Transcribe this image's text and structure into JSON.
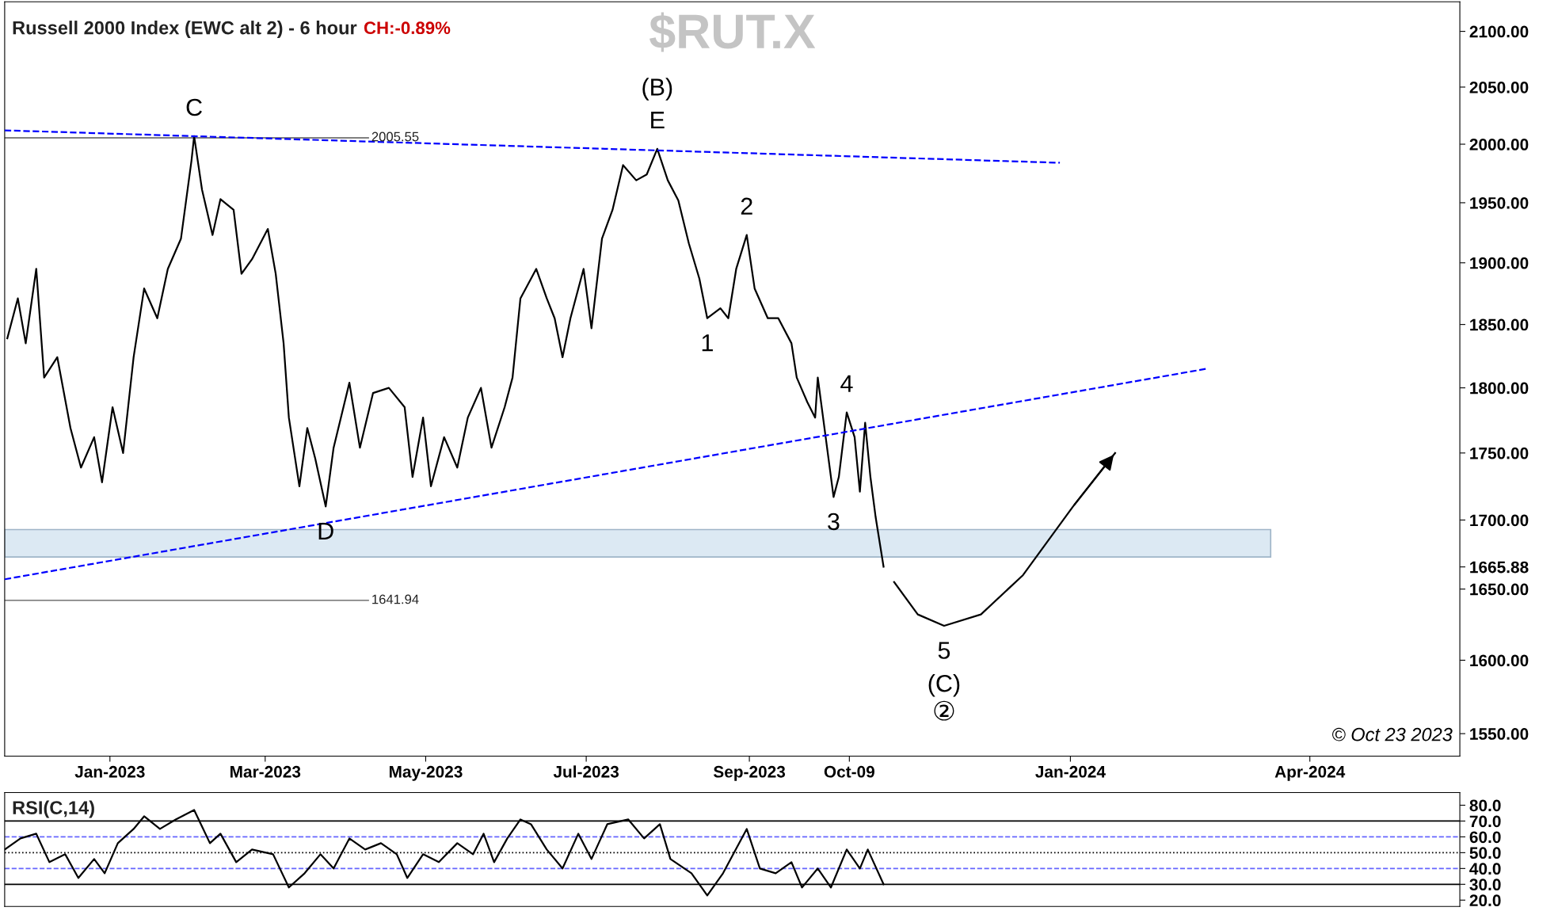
{
  "chart_data": [
    {
      "type": "line",
      "title": "Russell 2000 Index (EWC alt 2) - 6 hour",
      "subtitle": "CH:-0.89%",
      "log": true,
      "grid": false,
      "legend": false,
      "annotations": [
        "$RUT.X",
        "© Oct 23 2023",
        {
          "text": "C",
          "x": "2023-02-02",
          "y": 2007
        },
        {
          "text": "D",
          "x": "2023-03-24",
          "y": 1710
        },
        {
          "text": "E",
          "x": "2023-07-28",
          "y": 1996
        },
        {
          "text": "(B)",
          "x": "2023-07-28",
          "y": 1996
        },
        {
          "text": "1",
          "x": "2023-08-16",
          "y": 1855
        },
        {
          "text": "2",
          "x": "2023-08-31",
          "y": 1923
        },
        {
          "text": "3",
          "x": "2023-10-03",
          "y": 1717
        },
        {
          "text": "4",
          "x": "2023-10-08",
          "y": 1781
        },
        {
          "text": "5",
          "x": "2023-11-14",
          "y": 1624
        },
        {
          "text": "(C)",
          "x": "2023-11-14",
          "y": 1624
        },
        "②"
      ],
      "xlim": [
        "2022-11-22",
        "2024-05-28"
      ],
      "xticks": [
        {
          "value": "2023-01-01",
          "label": "Jan-2023"
        },
        {
          "value": "2023-03-01",
          "label": "Mar-2023"
        },
        {
          "value": "2023-05-01",
          "label": "May-2023"
        },
        {
          "value": "2023-07-01",
          "label": "Jul-2023"
        },
        {
          "value": "2023-09-01",
          "label": "Sep-2023"
        },
        {
          "value": "2023-10-09",
          "label": "Oct-09"
        },
        {
          "value": "2024-01-01",
          "label": "Jan-2024"
        },
        {
          "value": "2024-04-01",
          "label": "Apr-2024"
        }
      ],
      "ylim": [
        1535,
        2127
      ],
      "yticks": [
        {
          "value": 1550,
          "label": "1550.00"
        },
        {
          "value": 1600,
          "label": "1600.00"
        },
        {
          "value": 1650,
          "label": "1650.00"
        },
        {
          "value": 1665.88,
          "label": "1665.88"
        },
        {
          "value": 1700,
          "label": "1700.00"
        },
        {
          "value": 1750,
          "label": "1750.00"
        },
        {
          "value": 1800,
          "label": "1800.00"
        },
        {
          "value": 1850,
          "label": "1850.00"
        },
        {
          "value": 1900,
          "label": "1900.00"
        },
        {
          "value": 1950,
          "label": "1950.00"
        },
        {
          "value": 2000,
          "label": "2000.00"
        },
        {
          "value": 2050,
          "label": "2050.00"
        },
        {
          "value": 2100,
          "label": "2100.00"
        }
      ],
      "ref_lines": [
        {
          "axis": "y",
          "value": 2005.55,
          "label": "2005.55",
          "color": "#555555",
          "line_style": "solid"
        },
        {
          "axis": "y",
          "value": 1641.94,
          "label": "1641.94",
          "color": "#555555",
          "line_style": "solid"
        }
      ],
      "bands": [
        {
          "axis": "y",
          "from": 1673,
          "to": 1693,
          "color": "#dce9f3"
        }
      ],
      "series": [
        {
          "color": "#000000",
          "line_style": "solid",
          "x": [
            "2022-11-23",
            "2022-11-27",
            "2022-11-30",
            "2022-12-04",
            "2022-12-07",
            "2022-12-12",
            "2022-12-17",
            "2022-12-21",
            "2022-12-26",
            "2022-12-29",
            "2023-01-02",
            "2023-01-06",
            "2023-01-10",
            "2023-01-14",
            "2023-01-19",
            "2023-01-23",
            "2023-01-28",
            "2023-02-01",
            "2023-02-02",
            "2023-02-05",
            "2023-02-09",
            "2023-02-12",
            "2023-02-17",
            "2023-02-20",
            "2023-02-24",
            "2023-03-02",
            "2023-03-05",
            "2023-03-08",
            "2023-03-10",
            "2023-03-14",
            "2023-03-17",
            "2023-03-20",
            "2023-03-24",
            "2023-03-27",
            "2023-04-02",
            "2023-04-06",
            "2023-04-11",
            "2023-04-17",
            "2023-04-23",
            "2023-04-26",
            "2023-04-30",
            "2023-05-03",
            "2023-05-08",
            "2023-05-13",
            "2023-05-17",
            "2023-05-22",
            "2023-05-26",
            "2023-05-31",
            "2023-06-03",
            "2023-06-06",
            "2023-06-12",
            "2023-06-16",
            "2023-06-19",
            "2023-06-22",
            "2023-06-25",
            "2023-06-30",
            "2023-07-03",
            "2023-07-07",
            "2023-07-11",
            "2023-07-15",
            "2023-07-20",
            "2023-07-24",
            "2023-07-28",
            "2023-08-01",
            "2023-08-05",
            "2023-08-09",
            "2023-08-13",
            "2023-08-16",
            "2023-08-21",
            "2023-08-24",
            "2023-08-27",
            "2023-08-31",
            "2023-09-03",
            "2023-09-08",
            "2023-09-12",
            "2023-09-17",
            "2023-09-19",
            "2023-09-23",
            "2023-09-26",
            "2023-09-27",
            "2023-09-30",
            "2023-10-03",
            "2023-10-05",
            "2023-10-08",
            "2023-10-11",
            "2023-10-13",
            "2023-10-15",
            "2023-10-17",
            "2023-10-19",
            "2023-10-22"
          ],
          "values": [
            1839,
            1871,
            1835,
            1895,
            1808,
            1824,
            1769,
            1739,
            1762,
            1728,
            1785,
            1750,
            1824,
            1879,
            1855,
            1895,
            1920,
            1986,
            2007,
            1961,
            1923,
            1953,
            1944,
            1891,
            1903,
            1928,
            1891,
            1835,
            1777,
            1725,
            1769,
            1746,
            1710,
            1754,
            1804,
            1754,
            1796,
            1800,
            1785,
            1732,
            1777,
            1725,
            1762,
            1739,
            1777,
            1800,
            1754,
            1785,
            1808,
            1871,
            1895,
            1871,
            1855,
            1824,
            1855,
            1895,
            1847,
            1920,
            1944,
            1982,
            1969,
            1974,
            1996,
            1969,
            1952,
            1916,
            1887,
            1855,
            1863,
            1855,
            1895,
            1923,
            1879,
            1855,
            1855,
            1835,
            1808,
            1789,
            1777,
            1808,
            1762,
            1717,
            1732,
            1781,
            1762,
            1721,
            1773,
            1732,
            1702,
            1666
          ]
        },
        {
          "color": "#0000ff",
          "line_style": "dashed",
          "x": [
            "2022-11-22",
            "2023-12-28"
          ],
          "values": [
            2012,
            1984
          ]
        },
        {
          "color": "#0000ff",
          "line_style": "dashed",
          "x": [
            "2022-11-22",
            "2024-02-22"
          ],
          "values": [
            1657,
            1815
          ]
        },
        {
          "color": "#000000",
          "line_style": "solid",
          "x": [
            "2023-10-26",
            "2023-11-04",
            "2023-11-14",
            "2023-11-28",
            "2023-12-14",
            "2024-01-02",
            "2024-01-18"
          ],
          "values": [
            1655,
            1632,
            1624,
            1632,
            1660,
            1710,
            1750
          ]
        }
      ]
    },
    {
      "type": "line",
      "title": "RSI(C,14)",
      "tick_labels": "y",
      "grid": false,
      "legend": false,
      "xlim": [
        "2022-11-22",
        "2024-05-28"
      ],
      "ylim": [
        16,
        88
      ],
      "yticks": [
        {
          "value": 20,
          "label": "20.0"
        },
        {
          "value": 30,
          "label": "30.0"
        },
        {
          "value": 40,
          "label": "40.0"
        },
        {
          "value": 50,
          "label": "50.0"
        },
        {
          "value": 60,
          "label": "60.0"
        },
        {
          "value": 70,
          "label": "70.0"
        },
        {
          "value": 80,
          "label": "80.0"
        }
      ],
      "ref_lines": [
        {
          "axis": "y",
          "value": 70,
          "color": "#000000",
          "line_style": "solid"
        },
        {
          "axis": "y",
          "value": 60,
          "color": "#6666ff",
          "line_style": "dashed"
        },
        {
          "axis": "y",
          "value": 50,
          "color": "#000000",
          "line_style": "dotted"
        },
        {
          "axis": "y",
          "value": 40,
          "color": "#6666ff",
          "line_style": "dashed"
        },
        {
          "axis": "y",
          "value": 30,
          "color": "#000000",
          "line_style": "solid"
        }
      ],
      "series": [
        {
          "color": "#000000",
          "line_style": "solid",
          "x": [
            "2022-11-22",
            "2022-11-28",
            "2022-12-04",
            "2022-12-09",
            "2022-12-15",
            "2022-12-20",
            "2022-12-26",
            "2022-12-30",
            "2023-01-04",
            "2023-01-10",
            "2023-01-14",
            "2023-01-20",
            "2023-01-26",
            "2023-02-02",
            "2023-02-08",
            "2023-02-12",
            "2023-02-18",
            "2023-02-24",
            "2023-03-04",
            "2023-03-10",
            "2023-03-16",
            "2023-03-22",
            "2023-03-27",
            "2023-04-02",
            "2023-04-08",
            "2023-04-14",
            "2023-04-20",
            "2023-04-24",
            "2023-04-30",
            "2023-05-06",
            "2023-05-13",
            "2023-05-19",
            "2023-05-23",
            "2023-05-27",
            "2023-06-01",
            "2023-06-06",
            "2023-06-10",
            "2023-06-16",
            "2023-06-22",
            "2023-06-28",
            "2023-07-03",
            "2023-07-09",
            "2023-07-17",
            "2023-07-23",
            "2023-07-29",
            "2023-08-02",
            "2023-08-10",
            "2023-08-16",
            "2023-08-22",
            "2023-08-31",
            "2023-09-05",
            "2023-09-11",
            "2023-09-17",
            "2023-09-21",
            "2023-09-27",
            "2023-10-02",
            "2023-10-08",
            "2023-10-13",
            "2023-10-16",
            "2023-10-22"
          ],
          "values": [
            52,
            59,
            62,
            44,
            49,
            34,
            46,
            37,
            56,
            65,
            73,
            65,
            71,
            77,
            56,
            62,
            44,
            52,
            49,
            28,
            37,
            49,
            40,
            59,
            52,
            56,
            49,
            34,
            49,
            44,
            56,
            49,
            62,
            44,
            59,
            71,
            68,
            52,
            40,
            62,
            46,
            68,
            71,
            59,
            68,
            46,
            37,
            23,
            37,
            65,
            40,
            37,
            44,
            28,
            40,
            28,
            52,
            40,
            52,
            30
          ]
        }
      ]
    }
  ]
}
